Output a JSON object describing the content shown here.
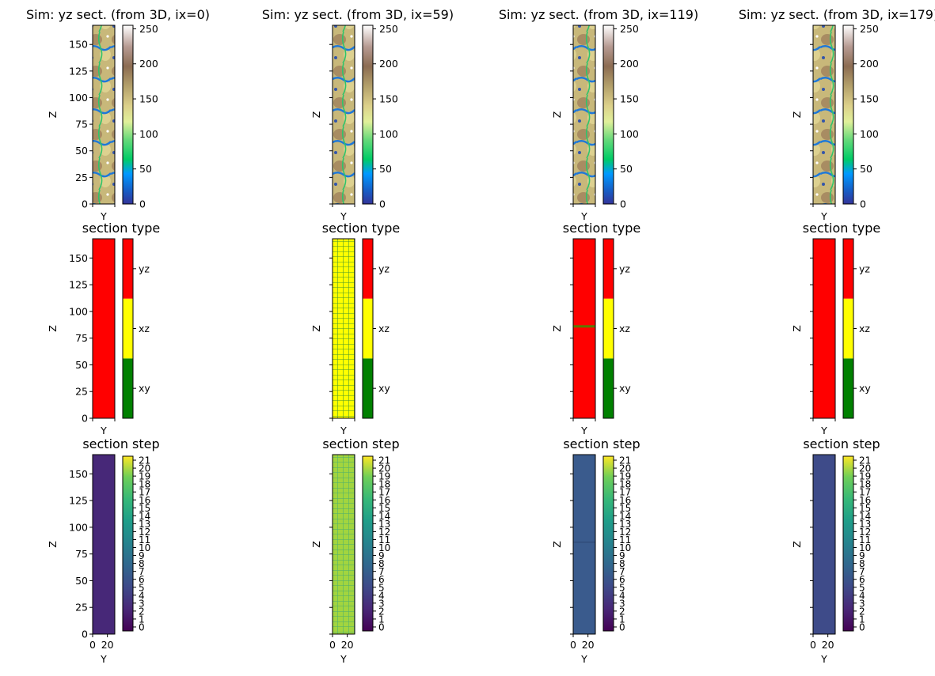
{
  "chart_data": {
    "type": "heatmap",
    "layout": "3 rows x 4 columns",
    "columns": [
      {
        "slice": "ix=0",
        "title": "Sim: yz sect. (from 3D, ix=0)"
      },
      {
        "slice": "ix=59",
        "title": "Sim: yz sect. (from 3D, ix=59)"
      },
      {
        "slice": "ix=119",
        "title": "Sim: yz sect. (from 3D, ix=119)"
      },
      {
        "slice": "ix=179",
        "title": "Sim: yz sect. (from 3D, ix=179)"
      }
    ],
    "rows": [
      {
        "kind": "simulation",
        "colormap": "terrain",
        "colorbar_ticks": [
          "0",
          "50",
          "100",
          "150",
          "200",
          "250"
        ],
        "colorbar_range": [
          0,
          255
        ],
        "yticks": [
          "0",
          "25",
          "50",
          "75",
          "100",
          "125",
          "150"
        ]
      },
      {
        "kind": "section type",
        "title": "section type",
        "colorbar_ticks": [
          "xy",
          "xz",
          "yz"
        ],
        "category_colors": {
          "xy": "#008000",
          "xz": "#ffff00",
          "yz": "#ff0000"
        },
        "yticks": [
          "0",
          "25",
          "50",
          "75",
          "100",
          "125",
          "150"
        ],
        "panel_fill": [
          "yz",
          "xz",
          "yz",
          "yz"
        ]
      },
      {
        "kind": "section step",
        "title": "section step",
        "colormap": "viridis",
        "colorbar_ticks": [
          "0",
          "1",
          "2",
          "3",
          "4",
          "5",
          "6",
          "7",
          "8",
          "9",
          "10",
          "11",
          "12",
          "13",
          "14",
          "15",
          "16",
          "17",
          "18",
          "19",
          "20",
          "21"
        ],
        "colorbar_range": [
          0,
          21
        ],
        "yticks": [
          "0",
          "25",
          "50",
          "75",
          "100",
          "125",
          "150"
        ],
        "xticks": [
          "0",
          "20"
        ],
        "panel_value": [
          3,
          16,
          7,
          4
        ],
        "panel_color": [
          "#472878",
          "#a2d53f",
          "#3a5b8d",
          "#3e4b89"
        ]
      }
    ],
    "xlabel": "Y",
    "ylabel": "Z",
    "xlim": [
      0,
      30
    ],
    "ylim": [
      0,
      168
    ]
  }
}
